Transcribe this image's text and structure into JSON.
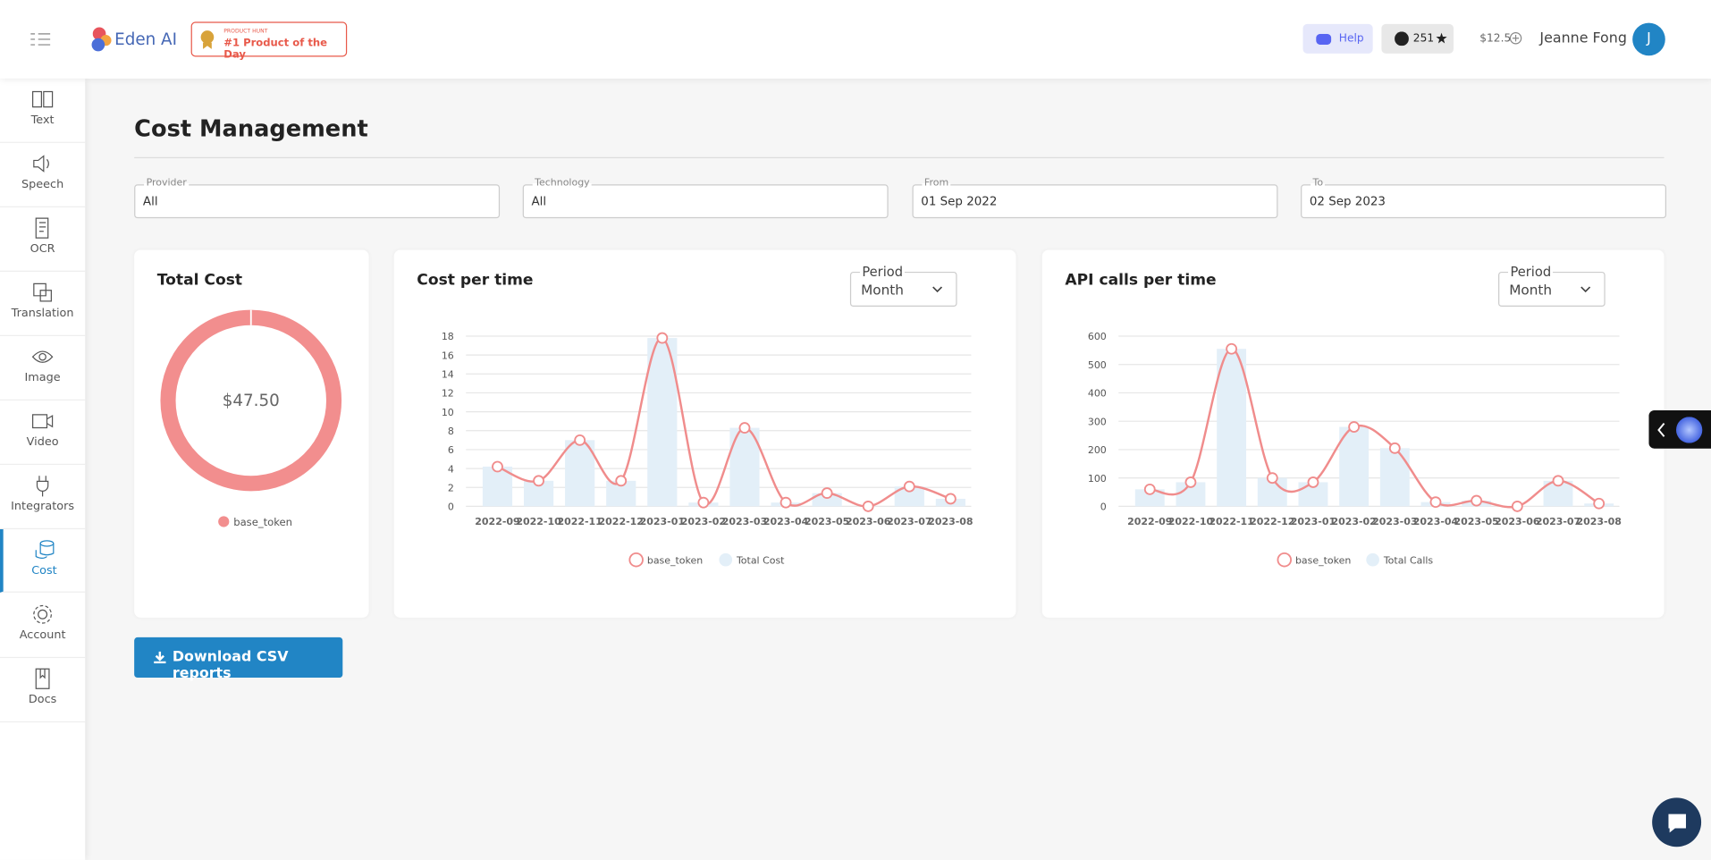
{
  "header": {
    "logo": "Eden AI",
    "badge_top": "PRODUCT HUNT",
    "badge": "#1 Product of the Day",
    "help": "Help",
    "github_stars": "251",
    "credits": "$12.5",
    "user": "Jeanne Fong",
    "avatar": "J"
  },
  "sidebar": [
    "Text",
    "Speech",
    "OCR",
    "Translation",
    "Image",
    "Video",
    "Integrators",
    "Cost",
    "Account",
    "Docs"
  ],
  "page_title": "Cost Management",
  "filters": [
    {
      "label": "Provider",
      "value": "All"
    },
    {
      "label": "Technology",
      "value": "All"
    },
    {
      "label": "From",
      "value": "01 Sep 2022"
    },
    {
      "label": "To",
      "value": "02 Sep 2023"
    }
  ],
  "period_selectors": [
    {
      "label": "Period",
      "value": "Month"
    },
    {
      "label": "Period",
      "value": "Month"
    }
  ],
  "download_button": "Download CSV reports",
  "chart_data": [
    {
      "type": "pie",
      "title": "Total Cost",
      "categories": [
        "base_token"
      ],
      "values": [
        47.5
      ],
      "value_labels": [
        "$47.50"
      ],
      "colors": [
        "#f28e8e"
      ]
    },
    {
      "type": "combo",
      "title": "Cost per time",
      "categories": [
        "2022-09",
        "2022-10",
        "2022-11",
        "2022-12",
        "2023-01",
        "2023-02",
        "2023-03",
        "2023-04",
        "2023-05",
        "2023-06",
        "2023-07",
        "2023-08"
      ],
      "series": [
        {
          "name": "base_token",
          "type": "line",
          "color": "#f08c8c",
          "values": [
            4.2,
            2.7,
            7.0,
            2.7,
            17.8,
            0.4,
            8.3,
            0.4,
            1.4,
            0,
            2.1,
            0.8
          ]
        },
        {
          "name": "Total Cost",
          "type": "bar",
          "color": "#e3eff8",
          "values": [
            4.2,
            2.7,
            7.0,
            2.7,
            17.8,
            0.4,
            8.3,
            0.4,
            1.4,
            0,
            2.1,
            0.8
          ]
        }
      ],
      "ylim": [
        0,
        18
      ],
      "yticks": [
        0,
        2,
        4,
        6,
        8,
        10,
        12,
        14,
        16,
        18
      ],
      "grid": true
    },
    {
      "type": "combo",
      "title": "API calls per time",
      "categories": [
        "2022-09",
        "2022-10",
        "2022-11",
        "2022-12",
        "2023-01",
        "2023-02",
        "2023-03",
        "2023-04",
        "2023-05",
        "2023-06",
        "2023-07",
        "2023-08"
      ],
      "series": [
        {
          "name": "base_token",
          "type": "line",
          "color": "#f08c8c",
          "values": [
            60,
            85,
            555,
            100,
            85,
            280,
            205,
            15,
            20,
            0,
            90,
            10
          ]
        },
        {
          "name": "Total Calls",
          "type": "bar",
          "color": "#e3eff8",
          "values": [
            60,
            85,
            555,
            100,
            85,
            280,
            205,
            15,
            20,
            0,
            90,
            10
          ]
        }
      ],
      "ylim": [
        0,
        600
      ],
      "yticks": [
        0,
        100,
        200,
        300,
        400,
        500,
        600
      ],
      "grid": true
    }
  ]
}
